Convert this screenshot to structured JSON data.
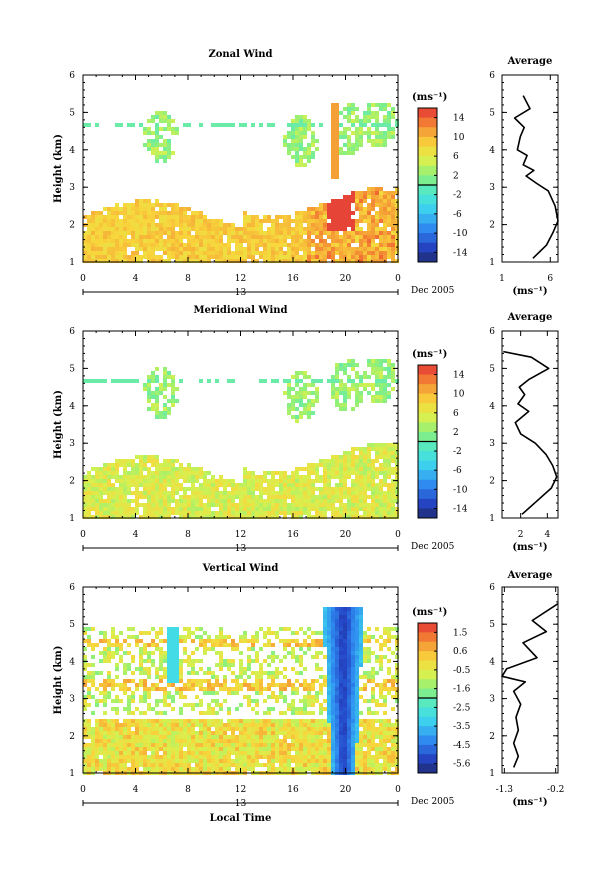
{
  "figure": {
    "date_label": "Dec 2005",
    "x_axis_label": "Local Time",
    "day_label": "13"
  },
  "chart_data": [
    {
      "type": "heatmap",
      "title": "Zonal Wind",
      "ylabel": "Height (km)",
      "xlabel": "",
      "x_ticks": [
        "0",
        "4",
        "8",
        "12",
        "16",
        "20",
        "0"
      ],
      "xlim": [
        0,
        24
      ],
      "ylim": [
        1,
        6
      ],
      "y_ticks": [
        1,
        2,
        3,
        4,
        5,
        6
      ],
      "unit_label": "(ms⁻¹)",
      "colorbar": {
        "range": [
          -16,
          16
        ],
        "ticks": [
          "14",
          "10",
          "6",
          "2",
          "-2",
          "-6",
          "-10",
          "-14"
        ]
      },
      "profile": {
        "title": "Average",
        "xlabel": "(ms⁻¹)",
        "x_ticks": [
          "1",
          "6"
        ],
        "xlim": [
          1,
          6.8
        ],
        "points": [
          [
            3.2,
            5.45
          ],
          [
            3.9,
            5.1
          ],
          [
            2.3,
            4.85
          ],
          [
            3.3,
            4.6
          ],
          [
            2.9,
            4.35
          ],
          [
            2.6,
            4.0
          ],
          [
            3.6,
            3.85
          ],
          [
            3.2,
            3.6
          ],
          [
            4.3,
            3.45
          ],
          [
            3.5,
            3.3
          ],
          [
            4.6,
            3.1
          ],
          [
            5.8,
            2.9
          ],
          [
            6.5,
            2.5
          ],
          [
            6.8,
            2.1
          ],
          [
            6.3,
            1.8
          ],
          [
            5.6,
            1.45
          ],
          [
            4.2,
            1.1
          ]
        ]
      }
    },
    {
      "type": "heatmap",
      "title": "Meridional Wind",
      "ylabel": "Height (km)",
      "xlabel": "",
      "x_ticks": [
        "0",
        "4",
        "8",
        "12",
        "16",
        "20",
        "0"
      ],
      "xlim": [
        0,
        24
      ],
      "ylim": [
        1,
        6
      ],
      "y_ticks": [
        1,
        2,
        3,
        4,
        5,
        6
      ],
      "unit_label": "(ms⁻¹)",
      "colorbar": {
        "range": [
          -16,
          16
        ],
        "ticks": [
          "14",
          "10",
          "6",
          "2",
          "-2",
          "-6",
          "-10",
          "-14"
        ]
      },
      "profile": {
        "title": "Average",
        "xlabel": "(ms⁻¹)",
        "x_ticks": [
          "2",
          "4"
        ],
        "xlim": [
          0.6,
          4.8
        ],
        "points": [
          [
            0.7,
            5.45
          ],
          [
            2.8,
            5.3
          ],
          [
            4.1,
            5.0
          ],
          [
            2.6,
            4.7
          ],
          [
            1.9,
            4.5
          ],
          [
            2.3,
            4.3
          ],
          [
            1.8,
            4.05
          ],
          [
            2.6,
            3.85
          ],
          [
            1.6,
            3.55
          ],
          [
            2.0,
            3.25
          ],
          [
            3.1,
            3.0
          ],
          [
            3.9,
            2.7
          ],
          [
            4.4,
            2.4
          ],
          [
            4.7,
            2.1
          ],
          [
            4.3,
            1.8
          ],
          [
            3.2,
            1.45
          ],
          [
            2.1,
            1.1
          ]
        ]
      }
    },
    {
      "type": "heatmap",
      "title": "Vertical Wind",
      "ylabel": "Height (km)",
      "xlabel": "Local Time",
      "x_ticks": [
        "0",
        "4",
        "8",
        "12",
        "16",
        "20",
        "0"
      ],
      "xlim": [
        0,
        24
      ],
      "ylim": [
        1,
        6
      ],
      "y_ticks": [
        1,
        2,
        3,
        4,
        5,
        6
      ],
      "unit_label": "(ms⁻¹)",
      "colorbar": {
        "range": [
          -6.0,
          2.0
        ],
        "ticks": [
          "1.5",
          "0.6",
          "-0.5",
          "-1.6",
          "-2.5",
          "-3.5",
          "-4.5",
          "-5.6"
        ]
      },
      "profile": {
        "title": "Average",
        "xlabel": "(ms⁻¹)",
        "x_ticks": [
          "-1.3",
          "-0.2"
        ],
        "xlim": [
          -1.35,
          -0.15
        ],
        "points": [
          [
            -0.15,
            5.55
          ],
          [
            -0.7,
            5.1
          ],
          [
            -0.4,
            4.8
          ],
          [
            -0.9,
            4.5
          ],
          [
            -0.6,
            4.1
          ],
          [
            -1.25,
            3.8
          ],
          [
            -1.35,
            3.6
          ],
          [
            -0.85,
            3.45
          ],
          [
            -1.1,
            3.2
          ],
          [
            -0.95,
            2.85
          ],
          [
            -1.05,
            2.5
          ],
          [
            -1.0,
            2.15
          ],
          [
            -1.1,
            1.8
          ],
          [
            -1.0,
            1.45
          ],
          [
            -1.1,
            1.15
          ]
        ]
      }
    }
  ]
}
